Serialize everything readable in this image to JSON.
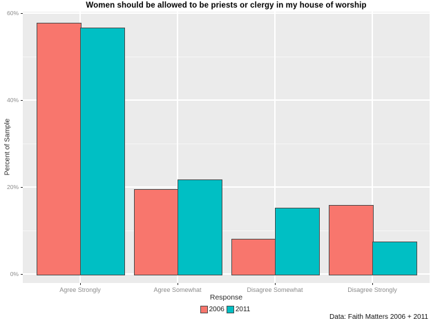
{
  "chart_data": {
    "type": "bar",
    "title": "Women should be allowed to be priests or clergy in my house of worship",
    "categories": [
      "Agree Strongly",
      "Agree Somewhat",
      "Disagree Somewhat",
      "Disagree Strongly"
    ],
    "series": [
      {
        "name": "2006",
        "color": "#F8766D",
        "values": [
          57.8,
          19.6,
          8.1,
          15.9
        ]
      },
      {
        "name": "2011",
        "color": "#00BFC4",
        "values": [
          56.6,
          21.7,
          15.3,
          7.5
        ]
      }
    ],
    "xlabel": "Response",
    "ylabel": "Percent of Sample",
    "ylim": [
      0,
      60
    ],
    "yticks": [
      0,
      20,
      40,
      60
    ],
    "ytick_labels": [
      "0%",
      "20%",
      "40%",
      "60%"
    ],
    "yminor_ticks": [
      10,
      30,
      50
    ],
    "legend_position": "bottom",
    "grid": true,
    "caption": "Data: Faith Matters 2006 + 2011",
    "colors": {
      "panel_bg": "#EBEBEB",
      "grid_major": "#FFFFFF",
      "grid_minor": "rgba(255,255,255,0.55)",
      "bar_border": "#4D4D4D",
      "tick_mark": "#333333",
      "axis_text": "#8C8C8C",
      "axis_title": "#2B2B2B",
      "title_text": "#000000",
      "legend_text": "#1A1A1A",
      "caption_text": "#111111"
    }
  }
}
